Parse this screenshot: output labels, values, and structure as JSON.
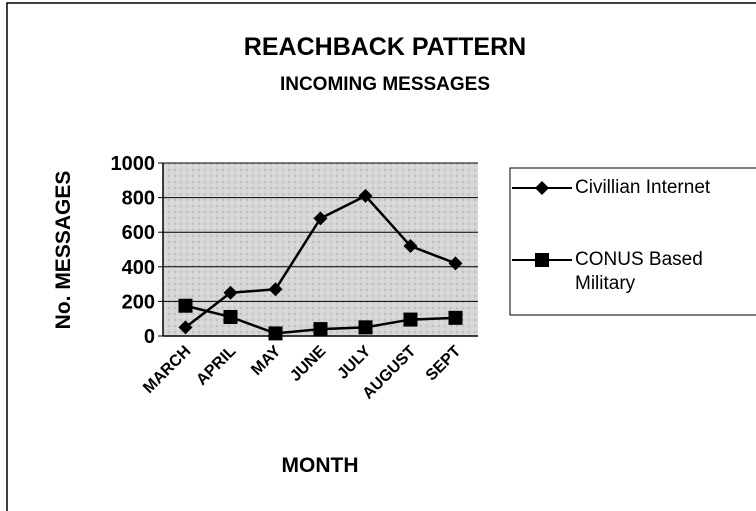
{
  "chart_data": {
    "type": "line",
    "title": "REACHBACK PATTERN",
    "subtitle": "INCOMING MESSAGES",
    "x_label": "MONTH",
    "y_label": "No. MESSAGES",
    "categories": [
      "MARCH",
      "APRIL",
      "MAY",
      "JUNE",
      "JULY",
      "AUGUST",
      "SEPT"
    ],
    "series": [
      {
        "name": "Civillian Internet",
        "color": "#000000",
        "marker": "diamond",
        "values": [
          50,
          250,
          270,
          680,
          810,
          520,
          420
        ]
      },
      {
        "name": "CONUS Based Military",
        "color": "#000000",
        "marker": "square",
        "values": [
          175,
          110,
          15,
          40,
          50,
          95,
          105
        ]
      }
    ],
    "ylim": [
      0,
      1000
    ],
    "yticks": [
      0,
      200,
      400,
      600,
      800,
      1000
    ],
    "grid": true,
    "legend": "right"
  }
}
